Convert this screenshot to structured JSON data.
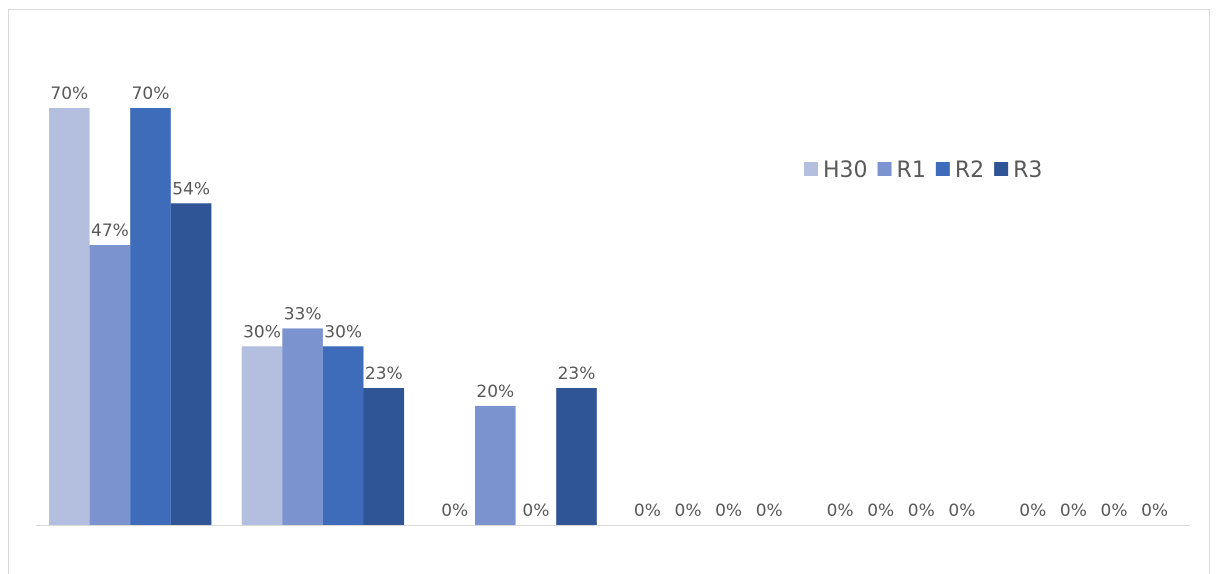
{
  "chart_data": {
    "type": "bar",
    "categories": [
      "",
      "",
      "",
      "",
      "",
      ""
    ],
    "series": [
      {
        "name": "H30",
        "color": "#b4bedf",
        "values": [
          70,
          30,
          0,
          0,
          0,
          0
        ]
      },
      {
        "name": "R1",
        "color": "#7b93cf",
        "values": [
          47,
          33,
          20,
          0,
          0,
          0
        ]
      },
      {
        "name": "R2",
        "color": "#3f6bbb",
        "values": [
          70,
          30,
          0,
          0,
          0,
          0
        ]
      },
      {
        "name": "R3",
        "color": "#2f5597",
        "values": [
          54,
          23,
          23,
          0,
          0,
          0
        ]
      }
    ],
    "value_suffix": "%",
    "ylim": [
      0,
      70
    ],
    "title": "",
    "xlabel": "",
    "ylabel": "",
    "grid": false,
    "legend_position": "top-right"
  }
}
